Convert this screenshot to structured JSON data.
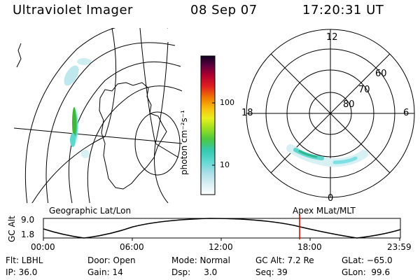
{
  "header": {
    "title": "Ultraviolet Imager",
    "date": "08 Sep 07",
    "time": "17:20:31 UT"
  },
  "colorbar": {
    "label": "photon cm⁻²s⁻¹",
    "ticks": [
      "100",
      "10"
    ]
  },
  "polar": {
    "mlt_labels": [
      "12",
      "18",
      "6",
      "0"
    ],
    "lat_labels": [
      "60",
      "70",
      "80"
    ]
  },
  "panels": {
    "left_caption": "Geographic Lat/Lon",
    "right_caption": "Apex MLat/MLT"
  },
  "orbit": {
    "ylabel": "GC Alt",
    "yticks": [
      "9.0",
      "1.8"
    ],
    "time_labels": [
      "00:00",
      "06:00",
      "12:00",
      "18:00",
      "23:59"
    ]
  },
  "info": {
    "flt": "Flt: LBHL",
    "door": "Door: Open",
    "mode": "Mode: Normal",
    "gc_alt": "GC Alt: 7.2 Re",
    "glat": "GLat: −65.0",
    "ip": "IP: 36.0",
    "gain": "Gain: 14",
    "dsp": "Dsp:     3.0",
    "seq": "Seq: 39",
    "glon": "GLon:  99.6"
  },
  "colors": {
    "aurora_low": "#bfe8ee",
    "aurora_mid": "#4fd3c8",
    "aurora_high": "#3fb83a",
    "marker": "#cc0000"
  }
}
